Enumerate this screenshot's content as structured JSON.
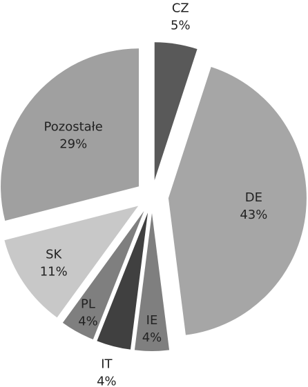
{
  "chart_data": {
    "type": "pie",
    "categories": [
      "CZ",
      "DE",
      "IE",
      "IT",
      "PL",
      "SK",
      "Pozostałe"
    ],
    "values": [
      5,
      43,
      4,
      4,
      4,
      11,
      29
    ],
    "value_labels": [
      "5%",
      "43%",
      "4%",
      "4%",
      "4%",
      "11%",
      "29%"
    ],
    "colors": [
      "#595959",
      "#a6a6a6",
      "#7f7f7f",
      "#404040",
      "#7f7f7f",
      "#c8c8c8",
      "#a0a0a0"
    ]
  }
}
